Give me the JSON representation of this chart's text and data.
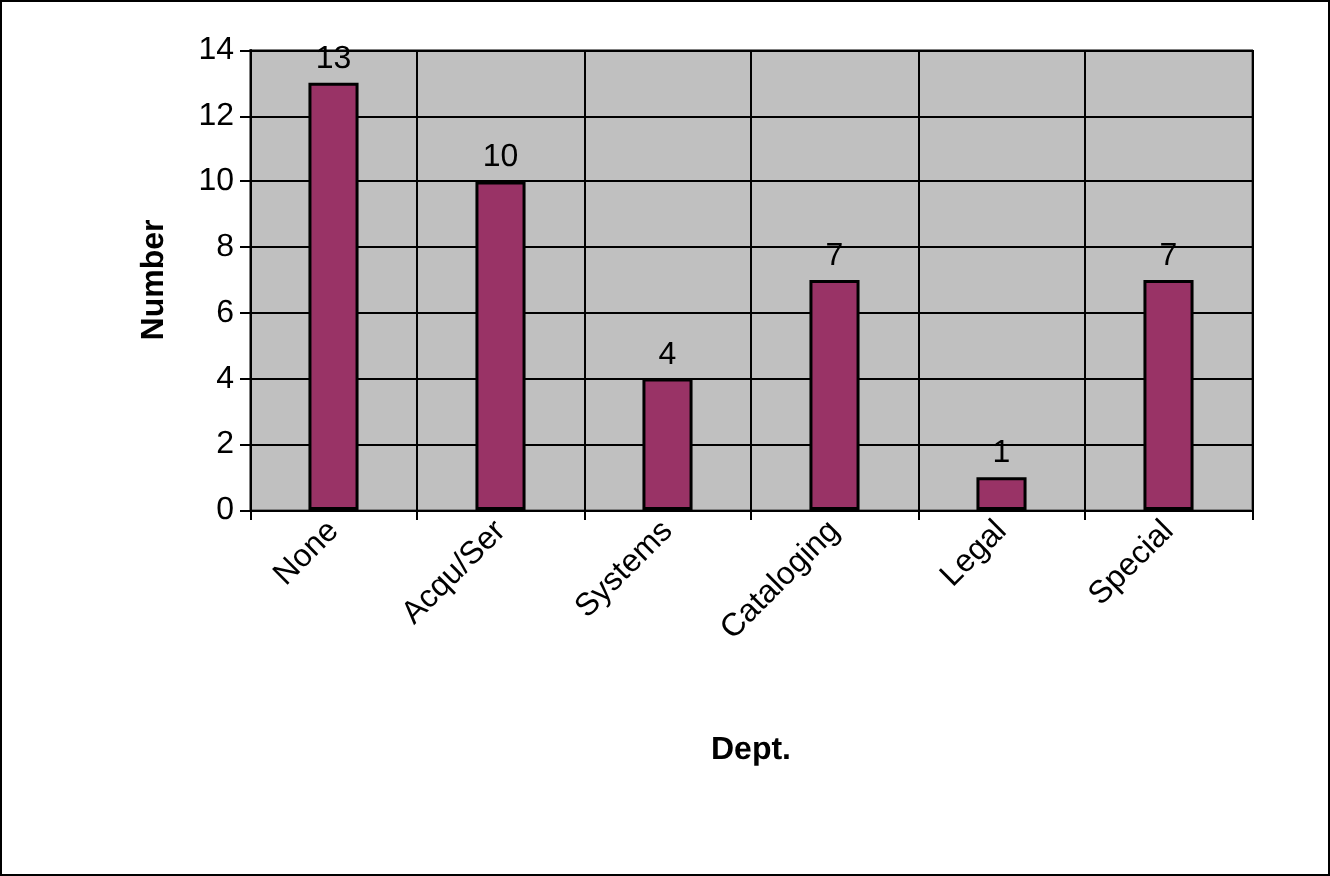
{
  "chart_data": {
    "type": "bar",
    "xlabel": "Dept.",
    "ylabel": "Number",
    "categories": [
      "None",
      "Acqu/Ser",
      "Systems",
      "Cataloging",
      "Legal",
      "Special"
    ],
    "values": [
      13,
      10,
      4,
      7,
      1,
      7
    ],
    "color": "#993366",
    "ylim": [
      0,
      14
    ],
    "yticks": [
      0,
      2,
      4,
      6,
      8,
      10,
      12,
      14
    ],
    "grid": true,
    "data_labels": true
  }
}
